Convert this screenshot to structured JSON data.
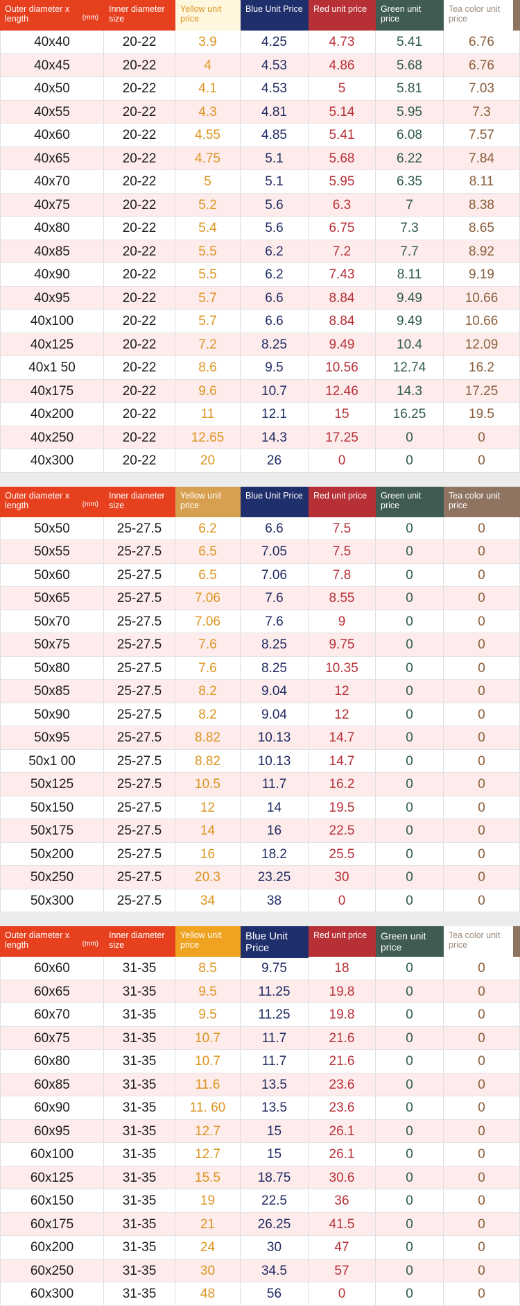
{
  "tables": [
    {
      "headers": {
        "outer": "Outer diameter x length",
        "unit": "(mm)",
        "inner": "Inner diameter size",
        "yellow": "Yellow unit price",
        "blue": "Blue Unit Price",
        "red": "Red unit price",
        "green": "Green unit price",
        "tea": "Tea color unit price"
      },
      "rows": [
        [
          "40x40",
          "20-22",
          "3.9",
          "4.25",
          "4.73",
          "5.41",
          "6.76"
        ],
        [
          "40x45",
          "20-22",
          "4",
          "4.53",
          "4.86",
          "5.68",
          "6.76"
        ],
        [
          "40x50",
          "20-22",
          "4.1",
          "4.53",
          "5",
          "5.81",
          "7.03"
        ],
        [
          "40x55",
          "20-22",
          "4.3",
          "4.81",
          "5.14",
          "5.95",
          "7.3"
        ],
        [
          "40x60",
          "20-22",
          "4.55",
          "4.85",
          "5.41",
          "6.08",
          "7.57"
        ],
        [
          "40x65",
          "20-22",
          "4.75",
          "5.1",
          "5.68",
          "6.22",
          "7.84"
        ],
        [
          "40x70",
          "20-22",
          "5",
          "5.1",
          "5.95",
          "6.35",
          "8.11"
        ],
        [
          "40x75",
          "20-22",
          "5.2",
          "5.6",
          "6.3",
          "7",
          "8.38"
        ],
        [
          "40x80",
          "20-22",
          "5.4",
          "5.6",
          "6.75",
          "7.3",
          "8.65"
        ],
        [
          "40x85",
          "20-22",
          "5.5",
          "6.2",
          "7.2",
          "7.7",
          "8.92"
        ],
        [
          "40x90",
          "20-22",
          "5.5",
          "6.2",
          "7.43",
          "8.11",
          "9.19"
        ],
        [
          "40x95",
          "20-22",
          "5.7",
          "6.6",
          "8.84",
          "9.49",
          "10.66"
        ],
        [
          "40x100",
          "20-22",
          "5.7",
          "6.6",
          "8.84",
          "9.49",
          "10.66"
        ],
        [
          "40x125",
          "20-22",
          "7.2",
          "8.25",
          "9.49",
          "10.4",
          "12.09"
        ],
        [
          "40x1 50",
          "20-22",
          "8.6",
          "9.5",
          "10.56",
          "12.74",
          "16.2"
        ],
        [
          "40x175",
          "20-22",
          "9.6",
          "10.7",
          "12.46",
          "14.3",
          "17.25"
        ],
        [
          "40x200",
          "20-22",
          "11",
          "12.1",
          "15",
          "16.25",
          "19.5"
        ],
        [
          "40x250",
          "20-22",
          "12.65",
          "14.3",
          "17.25",
          "0",
          "0"
        ],
        [
          "40x300",
          "20-22",
          "20",
          "26",
          "0",
          "0",
          "0"
        ]
      ]
    },
    {
      "headers": {
        "outer": "Outer diameter x length",
        "unit": "(mm)",
        "inner": "Inner diameter size",
        "yellow": "Yellow unit price",
        "blue": "Blue Unit Price",
        "red": "Red unit price",
        "green": "Green unit price",
        "tea": "Tea color unit price"
      },
      "rows": [
        [
          "50x50",
          "25-27.5",
          "6.2",
          "6.6",
          "7.5",
          "0",
          "0"
        ],
        [
          "50x55",
          "25-27.5",
          "6.5",
          "7.05",
          "7.5",
          "0",
          "0"
        ],
        [
          "50x60",
          "25-27.5",
          "6.5",
          "7.06",
          "7.8",
          "0",
          "0"
        ],
        [
          "50x65",
          "25-27.5",
          "7.06",
          "7.6",
          "8.55",
          "0",
          "0"
        ],
        [
          "50x70",
          "25-27.5",
          "7.06",
          "7.6",
          "9",
          "0",
          "0"
        ],
        [
          "50x75",
          "25-27.5",
          "7.6",
          "8.25",
          "9.75",
          "0",
          "0"
        ],
        [
          "50x80",
          "25-27.5",
          "7.6",
          "8.25",
          "10.35",
          "0",
          "0"
        ],
        [
          "50x85",
          "25-27.5",
          "8.2",
          "9.04",
          "12",
          "0",
          "0"
        ],
        [
          "50x90",
          "25-27.5",
          "8.2",
          "9.04",
          "12",
          "0",
          "0"
        ],
        [
          "50x95",
          "25-27.5",
          "8.82",
          "10.13",
          "14.7",
          "0",
          "0"
        ],
        [
          "50x1 00",
          "25-27.5",
          "8.82",
          "10.13",
          "14.7",
          "0",
          "0"
        ],
        [
          "50x125",
          "25-27.5",
          "10.5",
          "11.7",
          "16.2",
          "0",
          "0"
        ],
        [
          "50x150",
          "25-27.5",
          "12",
          "14",
          "19.5",
          "0",
          "0"
        ],
        [
          "50x175",
          "25-27.5",
          "14",
          "16",
          "22.5",
          "0",
          "0"
        ],
        [
          "50x200",
          "25-27.5",
          "16",
          "18.2",
          "25.5",
          "0",
          "0"
        ],
        [
          "50x250",
          "25-27.5",
          "20.3",
          "23.25",
          "30",
          "0",
          "0"
        ],
        [
          "50x300",
          "25-27.5",
          "34",
          "38",
          "0",
          "0",
          "0"
        ]
      ]
    },
    {
      "headers": {
        "outer": "Outer diameter x length",
        "unit": "(mm)",
        "inner": "Inner diameter size",
        "yellow": "Yellow unit price",
        "blue": "Blue Unit Price",
        "red": "Red unit price",
        "green": "Green unit price",
        "tea": "Tea color unit price"
      },
      "rows": [
        [
          "60x60",
          "31-35",
          "8.5",
          "9.75",
          "18",
          "0",
          "0"
        ],
        [
          "60x65",
          "31-35",
          "9.5",
          "11.25",
          "19.8",
          "0",
          "0"
        ],
        [
          "60x70",
          "31-35",
          "9.5",
          "11.25",
          "19.8",
          "0",
          "0"
        ],
        [
          "60x75",
          "31-35",
          "10.7",
          "11.7",
          "21.6",
          "0",
          "0"
        ],
        [
          "60x80",
          "31-35",
          "10.7",
          "11.7",
          "21.6",
          "0",
          "0"
        ],
        [
          "60x85",
          "31-35",
          "11.6",
          "13.5",
          "23.6",
          "0",
          "0"
        ],
        [
          "60x90",
          "31-35",
          "11. 60",
          "13.5",
          "23.6",
          "0",
          "0"
        ],
        [
          "60x95",
          "31-35",
          "12.7",
          "15",
          "26.1",
          "0",
          "0"
        ],
        [
          "60x100",
          "31-35",
          "12.7",
          "15",
          "26.1",
          "0",
          "0"
        ],
        [
          "60x125",
          "31-35",
          "15.5",
          "18.75",
          "30.6",
          "0",
          "0"
        ],
        [
          "60x150",
          "31-35",
          "19",
          "22.5",
          "36",
          "0",
          "0"
        ],
        [
          "60x175",
          "31-35",
          "21",
          "26.25",
          "41.5",
          "0",
          "0"
        ],
        [
          "60x200",
          "31-35",
          "24",
          "30",
          "47",
          "0",
          "0"
        ],
        [
          "60x250",
          "31-35",
          "30",
          "34.5",
          "57",
          "0",
          "0"
        ],
        [
          "60x300",
          "31-35",
          "48",
          "56",
          "0",
          "0",
          "0"
        ]
      ]
    }
  ]
}
